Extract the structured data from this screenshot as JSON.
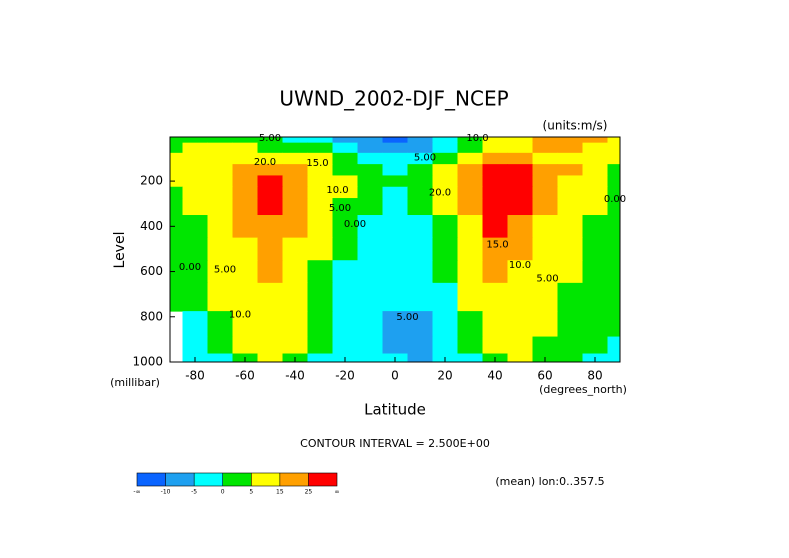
{
  "chart_data": {
    "type": "contour",
    "title": "UWND_2002-DJF_NCEP",
    "subtitle": "(units:m/s)",
    "x_label": "Latitude",
    "x_units": "(degrees_north)",
    "y_label": "Level",
    "y_units": "(millibar)",
    "note": "CONTOUR INTERVAL = 2.500E+00",
    "footer": "(mean) lon:0..357.5",
    "x": [
      -90,
      -80,
      -70,
      -60,
      -50,
      -40,
      -30,
      -20,
      -10,
      0,
      10,
      20,
      30,
      40,
      50,
      60,
      70,
      80,
      90
    ],
    "levels": [
      10,
      50,
      100,
      150,
      200,
      250,
      300,
      400,
      500,
      600,
      700,
      850,
      925,
      1000
    ],
    "values": [
      [
        3,
        3,
        2,
        1,
        0,
        -2,
        -5,
        -8,
        -10,
        -12,
        -10,
        -5,
        2,
        8,
        12,
        15,
        18,
        15,
        10
      ],
      [
        4,
        5,
        5,
        5,
        3,
        2,
        0,
        -3,
        -6,
        -8,
        -6,
        -2,
        3,
        10,
        14,
        16,
        16,
        12,
        8
      ],
      [
        5,
        6,
        8,
        12,
        14,
        12,
        8,
        2,
        -1,
        -3,
        -2,
        3,
        10,
        22,
        18,
        14,
        12,
        8,
        5
      ],
      [
        5,
        7,
        10,
        18,
        20,
        17,
        10,
        4,
        1,
        -1,
        0,
        6,
        18,
        32,
        28,
        20,
        15,
        8,
        4
      ],
      [
        5,
        6,
        10,
        20,
        27,
        22,
        14,
        6,
        2,
        0,
        2,
        8,
        22,
        40,
        34,
        22,
        14,
        7,
        3
      ],
      [
        4,
        6,
        10,
        19,
        28,
        22,
        14,
        5,
        1,
        -1,
        1,
        7,
        20,
        38,
        32,
        20,
        12,
        6,
        2
      ],
      [
        3,
        5,
        9,
        18,
        25,
        20,
        12,
        4,
        0,
        -2,
        0,
        5,
        17,
        33,
        28,
        18,
        10,
        5,
        2
      ],
      [
        2,
        4,
        8,
        16,
        21,
        16,
        9,
        2,
        -2,
        -3,
        -2,
        3,
        13,
        25,
        22,
        14,
        8,
        4,
        1
      ],
      [
        1,
        3,
        7,
        14,
        18,
        13,
        6,
        0,
        -3,
        -4,
        -3,
        2,
        9,
        19,
        17,
        11,
        6,
        3,
        1
      ],
      [
        0,
        2,
        6,
        12,
        15,
        11,
        4,
        -1,
        -3,
        -5,
        -4,
        1,
        7,
        15,
        13,
        9,
        5,
        2,
        0
      ],
      [
        0,
        1,
        5,
        11,
        13,
        9,
        3,
        -2,
        -4,
        -5,
        -5,
        -1,
        5,
        11,
        11,
        7,
        4,
        2,
        0
      ],
      [
        null,
        -1,
        3,
        9,
        11,
        7,
        1,
        -3,
        -5,
        -6,
        -7,
        -3,
        2,
        7,
        8,
        5,
        3,
        1,
        0
      ],
      [
        null,
        -2,
        1,
        7,
        9,
        5,
        0,
        -4,
        -5,
        -6,
        -7,
        -4,
        0,
        5,
        7,
        4,
        2,
        0,
        -1
      ],
      [
        null,
        -2,
        -1,
        4,
        7,
        4,
        -1,
        -4,
        -5,
        -4,
        -6,
        -5,
        -1,
        3,
        6,
        3,
        1,
        -1,
        -1
      ]
    ],
    "xlim": [
      -90,
      90
    ],
    "ylim": [
      1000,
      5
    ],
    "xticks": [
      -80,
      -60,
      -40,
      -20,
      0,
      20,
      40,
      60,
      80
    ],
    "yticks": [
      200,
      400,
      600,
      800,
      1000
    ],
    "colorbar": {
      "bounds": [
        -10,
        -5,
        0,
        5,
        15,
        25
      ],
      "ends": [
        "-∞",
        "∞"
      ],
      "colors": [
        "#0a64ff",
        "#1ea0f0",
        "#00ffff",
        "#00e600",
        "#ffff00",
        "#ffa000",
        "#ff0000"
      ]
    },
    "annotations": [
      {
        "text": "20.0",
        "x": -52,
        "y": 115
      },
      {
        "text": "15.0",
        "x": -31,
        "y": 120
      },
      {
        "text": "10.0",
        "x": -23,
        "y": 240
      },
      {
        "text": "5.00",
        "x": -22,
        "y": 320
      },
      {
        "text": "0.00",
        "x": -16,
        "y": 390
      },
      {
        "text": "5.00",
        "x": -50,
        "y": 10
      },
      {
        "text": "10.0",
        "x": 33,
        "y": 10
      },
      {
        "text": "5.00",
        "x": 12,
        "y": 95
      },
      {
        "text": "20.0",
        "x": 18,
        "y": 250
      },
      {
        "text": "15.0",
        "x": 41,
        "y": 480
      },
      {
        "text": "10.0",
        "x": 50,
        "y": 570
      },
      {
        "text": "5.00",
        "x": 61,
        "y": 630
      },
      {
        "text": "0.00",
        "x": 88,
        "y": 280
      },
      {
        "text": "0.00",
        "x": -82,
        "y": 580
      },
      {
        "text": "5.00",
        "x": -68,
        "y": 590
      },
      {
        "text": "10.0",
        "x": -62,
        "y": 790
      },
      {
        "text": "5.00",
        "x": 5,
        "y": 800
      }
    ]
  }
}
